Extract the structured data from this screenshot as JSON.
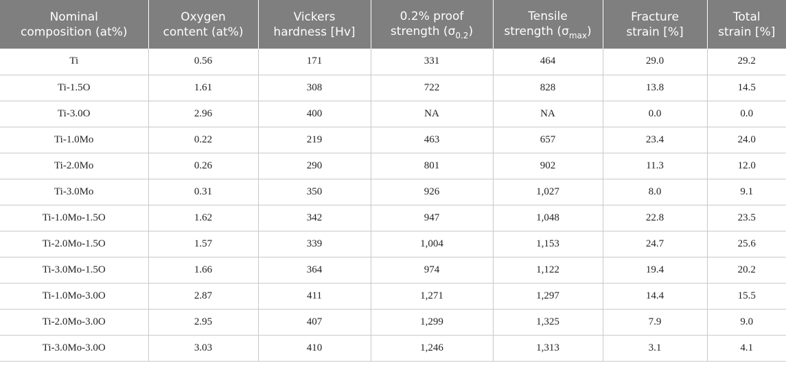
{
  "headers": [
    {
      "line1": "Nominal",
      "line2": "composition (at%)"
    },
    {
      "line1": "Oxygen",
      "line2": "content (at%)"
    },
    {
      "line1": "Vickers",
      "line2": "hardness [Hv]"
    },
    {
      "line1": "0.2% proof",
      "line2_main": "strength (σ",
      "line2_sub": "0.2",
      "line2_end": ")"
    },
    {
      "line1": "Tensile",
      "line2_main": "strength (σ",
      "line2_sub": "max",
      "line2_end": ")"
    },
    {
      "line1": "Fracture",
      "line2": "strain [%]"
    },
    {
      "line1": "Total",
      "line2": "strain [%]"
    }
  ],
  "rows": [
    [
      "Ti",
      "0.56",
      "171",
      "331",
      "464",
      "29.0",
      "29.2"
    ],
    [
      "Ti-1.5O",
      "1.61",
      "308",
      "722",
      "828",
      "13.8",
      "14.5"
    ],
    [
      "Ti-3.0O",
      "2.96",
      "400",
      "NA",
      "NA",
      "0.0",
      "0.0"
    ],
    [
      "Ti-1.0Mo",
      "0.22",
      "219",
      "463",
      "657",
      "23.4",
      "24.0"
    ],
    [
      "Ti-2.0Mo",
      "0.26",
      "290",
      "801",
      "902",
      "11.3",
      "12.0"
    ],
    [
      "Ti-3.0Mo",
      "0.31",
      "350",
      "926",
      "1,027",
      "8.0",
      "9.1"
    ],
    [
      "Ti-1.0Mo-1.5O",
      "1.62",
      "342",
      "947",
      "1,048",
      "22.8",
      "23.5"
    ],
    [
      "Ti-2.0Mo-1.5O",
      "1.57",
      "339",
      "1,004",
      "1,153",
      "24.7",
      "25.6"
    ],
    [
      "Ti-3.0Mo-1.5O",
      "1.66",
      "364",
      "974",
      "1,122",
      "19.4",
      "20.2"
    ],
    [
      "Ti-1.0Mo-3.0O",
      "2.87",
      "411",
      "1,271",
      "1,297",
      "14.4",
      "15.5"
    ],
    [
      "Ti-2.0Mo-3.0O",
      "2.95",
      "407",
      "1,299",
      "1,325",
      "7.9",
      "9.0"
    ],
    [
      "Ti-3.0Mo-3.0O",
      "3.03",
      "410",
      "1,246",
      "1,313",
      "3.1",
      "4.1"
    ]
  ],
  "colors": {
    "header_bg": "#7f7f7f",
    "header_text": "#ffffff",
    "grid_line": "#c8c8c8"
  }
}
